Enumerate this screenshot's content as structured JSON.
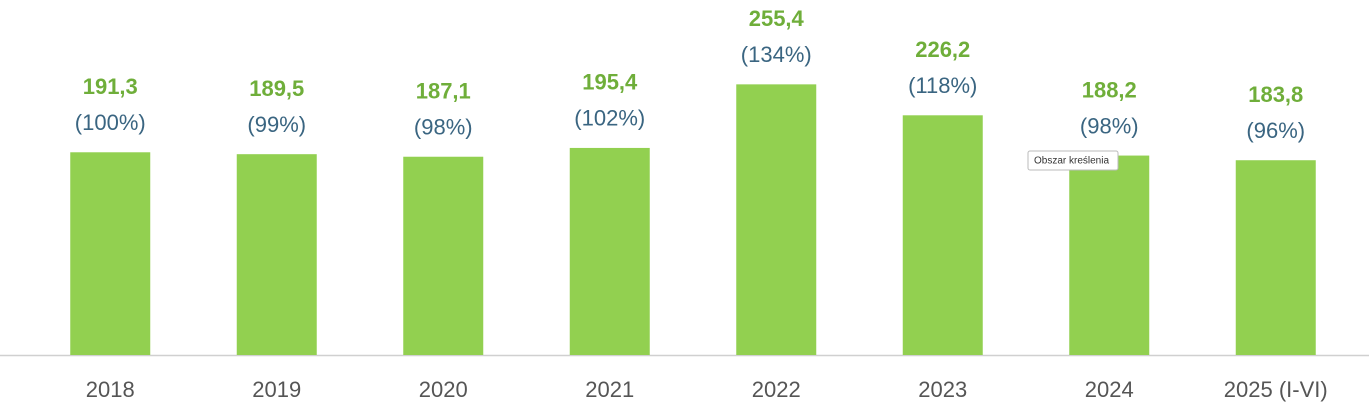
{
  "chart_data": {
    "type": "bar",
    "categories": [
      "2018",
      "2019",
      "2020",
      "2021",
      "2022",
      "2023",
      "2024",
      "2025 (I-VI)"
    ],
    "values": [
      191.3,
      189.5,
      187.1,
      195.4,
      255.4,
      226.2,
      188.2,
      183.8
    ],
    "value_labels": [
      "191,3",
      "189,5",
      "187,1",
      "195,4",
      "255,4",
      "226,2",
      "188,2",
      "183,8"
    ],
    "percent_labels": [
      "(100%)",
      "(99%)",
      "(98%)",
      "(102%)",
      "(134%)",
      "(118%)",
      "(98%)",
      "(96%)"
    ],
    "color": "#92d050",
    "ylim": [
      0,
      335
    ]
  },
  "tooltip": "Obszar kreślenia"
}
